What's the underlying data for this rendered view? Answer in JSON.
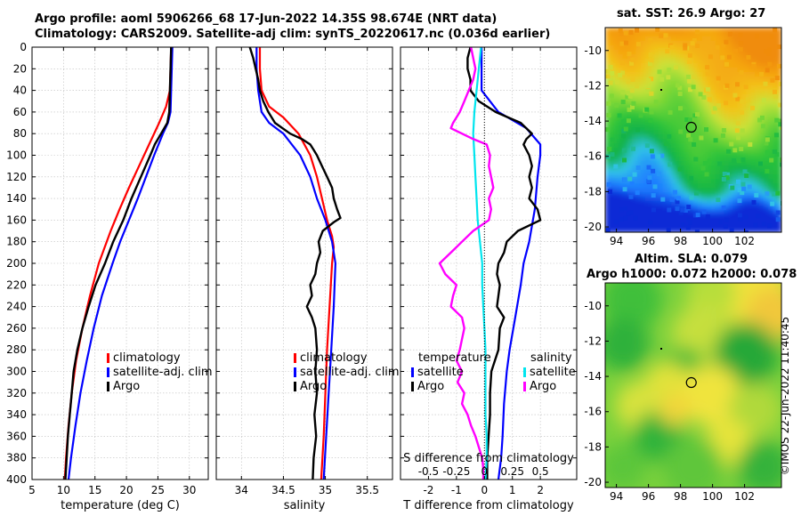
{
  "titles": {
    "line1": "Argo profile: aoml 5906266_68 17-Jun-2022 14.35S 98.674E (NRT data)",
    "line2": "Climatology: CARS2009. Satellite-adj clim: synTS_20220617.nc (0.036d earlier)",
    "sst_title": "sat. SST: 26.9 Argo: 27",
    "sla_title1": "Altim. SLA: 0.079",
    "sla_title2": "Argo h1000: 0.072 h2000: 0.078",
    "imos_stamp": "©IMOS 22-Jun-2022 11:40:45"
  },
  "colors": {
    "climatology": "#ff0000",
    "satellite": "#0000ff",
    "argo": "#000000",
    "sal_satellite": "#00e5ee",
    "sal_argo": "#ff00ff"
  },
  "chart_data": [
    {
      "type": "line",
      "panel": "temperature",
      "xlabel": "temperature (deg C)",
      "ylabel": "",
      "xlim": [
        5,
        33
      ],
      "ylim": [
        400,
        0
      ],
      "xticks": [
        5,
        10,
        15,
        20,
        25,
        30
      ],
      "yticks": [
        0,
        20,
        40,
        60,
        80,
        100,
        120,
        140,
        160,
        180,
        200,
        220,
        240,
        260,
        280,
        300,
        320,
        340,
        360,
        380,
        400
      ],
      "grid": true,
      "legend": [
        "climatology",
        "satellite-adj. clim",
        "Argo"
      ],
      "series": [
        {
          "name": "climatology",
          "color": "#ff0000",
          "depth": [
            0,
            20,
            40,
            55,
            70,
            90,
            110,
            130,
            150,
            170,
            200,
            230,
            260,
            290,
            320,
            350,
            380,
            400
          ],
          "values": [
            27.1,
            27.0,
            26.9,
            26.3,
            25.2,
            23.6,
            22.0,
            20.4,
            18.9,
            17.5,
            15.6,
            14.2,
            13.0,
            12.0,
            11.3,
            10.8,
            10.4,
            10.2
          ]
        },
        {
          "name": "satellite-adj. clim",
          "color": "#0000ff",
          "depth": [
            0,
            20,
            40,
            60,
            70,
            80,
            100,
            120,
            140,
            160,
            180,
            200,
            230,
            260,
            290,
            320,
            350,
            380,
            400
          ],
          "values": [
            27.3,
            27.2,
            27.1,
            27.0,
            26.6,
            25.8,
            24.4,
            23.1,
            21.8,
            20.4,
            19.0,
            17.8,
            16.1,
            14.8,
            13.7,
            12.7,
            11.9,
            11.2,
            10.8
          ]
        },
        {
          "name": "Argo",
          "color": "#000000",
          "depth": [
            0,
            20,
            40,
            60,
            70,
            80,
            90,
            100,
            120,
            140,
            160,
            180,
            200,
            220,
            240,
            260,
            280,
            300,
            320,
            340,
            360,
            380,
            400
          ],
          "values": [
            27.1,
            27.0,
            26.9,
            26.8,
            26.5,
            25.5,
            24.5,
            23.8,
            22.3,
            20.8,
            19.5,
            17.9,
            16.6,
            15.1,
            14.0,
            13.0,
            12.2,
            11.6,
            11.3,
            11.0,
            10.7,
            10.5,
            10.3
          ]
        }
      ]
    },
    {
      "type": "line",
      "panel": "salinity",
      "xlabel": "salinity",
      "ylabel": "",
      "xlim": [
        33.7,
        35.8
      ],
      "ylim": [
        400,
        0
      ],
      "xticks": [
        34,
        34.5,
        35,
        35.5
      ],
      "xticklabels": [
        "34",
        "34.5",
        "35",
        "35.5"
      ],
      "grid": true,
      "legend": [
        "climatology",
        "satellite-adj. clim",
        "Argo"
      ],
      "series": [
        {
          "name": "climatology",
          "color": "#ff0000",
          "depth": [
            0,
            20,
            40,
            55,
            65,
            80,
            100,
            120,
            140,
            160,
            175,
            185,
            200,
            240,
            280,
            320,
            360,
            400
          ],
          "values": [
            34.22,
            34.22,
            34.24,
            34.33,
            34.5,
            34.68,
            34.82,
            34.9,
            34.96,
            35.02,
            35.08,
            35.1,
            35.08,
            35.05,
            35.02,
            35.0,
            34.98,
            34.95
          ]
        },
        {
          "name": "satellite-adj. clim",
          "color": "#0000ff",
          "depth": [
            0,
            20,
            40,
            60,
            70,
            80,
            100,
            120,
            140,
            160,
            180,
            200,
            240,
            280,
            320,
            360,
            400
          ],
          "values": [
            34.18,
            34.18,
            34.2,
            34.24,
            34.33,
            34.5,
            34.7,
            34.82,
            34.9,
            35.0,
            35.08,
            35.12,
            35.1,
            35.07,
            35.04,
            35.01,
            34.98
          ]
        },
        {
          "name": "Argo",
          "color": "#000000",
          "depth": [
            0,
            10,
            20,
            30,
            40,
            50,
            60,
            70,
            80,
            85,
            90,
            95,
            100,
            110,
            120,
            130,
            140,
            150,
            158,
            162,
            170,
            180,
            190,
            200,
            210,
            220,
            230,
            240,
            250,
            260,
            280,
            300,
            320,
            340,
            360,
            380,
            400
          ],
          "values": [
            34.1,
            34.14,
            34.17,
            34.2,
            34.22,
            34.26,
            34.32,
            34.4,
            34.58,
            34.72,
            34.82,
            34.86,
            34.9,
            34.96,
            35.02,
            35.08,
            35.1,
            35.14,
            35.18,
            35.1,
            34.97,
            34.92,
            34.94,
            34.9,
            34.88,
            34.82,
            34.84,
            34.78,
            34.84,
            34.88,
            34.9,
            34.88,
            34.9,
            34.87,
            34.89,
            34.86,
            34.85
          ]
        }
      ]
    },
    {
      "type": "line",
      "panel": "difference",
      "xlabel": "T difference from climatology",
      "top_axis_label": "S difference from climatology",
      "xlim": [
        -3,
        3.3
      ],
      "ylim": [
        400,
        0
      ],
      "xticks": [
        -2,
        -1,
        0,
        1,
        2
      ],
      "xticklabels": [
        "-2",
        "-1",
        "0",
        "1",
        "2"
      ],
      "s_ticklabels": [
        "-0.5",
        "-0.25",
        "0",
        "0.25",
        "0.5"
      ],
      "grid": true,
      "legend_temperature_title": "temperature",
      "legend_salinity_title": "salinity",
      "legend": [
        "satellite",
        "Argo",
        "satellite",
        "Argo"
      ],
      "series": [
        {
          "name": "T satellite",
          "color": "#0000ff",
          "depth": [
            0,
            40,
            60,
            75,
            90,
            100,
            120,
            150,
            180,
            200,
            220,
            250,
            280,
            300,
            330,
            360,
            380,
            400
          ],
          "values": [
            -0.1,
            -0.1,
            0.5,
            1.5,
            2.0,
            2.0,
            1.9,
            1.8,
            1.6,
            1.4,
            1.3,
            1.1,
            0.9,
            0.8,
            0.7,
            0.65,
            0.6,
            0.5
          ]
        },
        {
          "name": "T Argo",
          "color": "#000000",
          "depth": [
            0,
            10,
            20,
            30,
            40,
            50,
            60,
            70,
            80,
            85,
            90,
            100,
            110,
            120,
            130,
            140,
            150,
            160,
            170,
            180,
            190,
            200,
            210,
            220,
            240,
            250,
            260,
            280,
            300,
            320,
            340,
            360,
            380,
            400
          ],
          "values": [
            -0.5,
            -0.6,
            -0.6,
            -0.5,
            -0.5,
            -0.2,
            0.4,
            1.3,
            1.7,
            1.5,
            1.4,
            1.6,
            1.7,
            1.6,
            1.7,
            1.6,
            1.9,
            2.0,
            1.2,
            0.8,
            0.7,
            0.5,
            0.45,
            0.55,
            0.45,
            0.7,
            0.55,
            0.5,
            0.25,
            0.2,
            0.2,
            0.15,
            0.1,
            0.1
          ]
        },
        {
          "name": "S satellite",
          "color": "#00e5ee",
          "depth": [
            0,
            20,
            40,
            60,
            80,
            100,
            120,
            140,
            160,
            180,
            200,
            220,
            240,
            260,
            280,
            300,
            320,
            340,
            360,
            380,
            400
          ],
          "values": [
            -0.03,
            -0.05,
            -0.07,
            -0.09,
            -0.1,
            -0.09,
            -0.08,
            -0.07,
            -0.06,
            -0.04,
            -0.02,
            -0.02,
            -0.01,
            0.0,
            0.01,
            0.01,
            0.01,
            0.01,
            0.02,
            0.02,
            0.01
          ]
        },
        {
          "name": "S Argo",
          "color": "#ff00ff",
          "depth": [
            0,
            10,
            20,
            30,
            40,
            50,
            60,
            70,
            75,
            80,
            85,
            90,
            100,
            110,
            120,
            130,
            140,
            150,
            160,
            170,
            180,
            190,
            200,
            210,
            220,
            230,
            240,
            250,
            260,
            270,
            280,
            290,
            300,
            310,
            320,
            330,
            340,
            350,
            360,
            370,
            380,
            390,
            400
          ],
          "values": [
            -0.12,
            -0.1,
            -0.08,
            -0.1,
            -0.14,
            -0.18,
            -0.22,
            -0.28,
            -0.3,
            -0.2,
            -0.1,
            0.02,
            0.05,
            0.04,
            0.06,
            0.08,
            0.04,
            0.06,
            0.04,
            -0.1,
            -0.2,
            -0.3,
            -0.4,
            -0.35,
            -0.25,
            -0.28,
            -0.3,
            -0.2,
            -0.18,
            -0.2,
            -0.22,
            -0.25,
            -0.2,
            -0.24,
            -0.18,
            -0.2,
            -0.15,
            -0.12,
            -0.08,
            -0.05,
            -0.02,
            -0.01,
            -0.01
          ]
        }
      ]
    },
    {
      "type": "heatmap",
      "panel": "sat_sst_map",
      "title": "sat. SST: 26.9 Argo: 27",
      "xlim": [
        93.3,
        104.3
      ],
      "ylim": [
        -20.3,
        -8.7
      ],
      "xticks": [
        94,
        96,
        98,
        100,
        102
      ],
      "yticks": [
        -10,
        -12,
        -14,
        -16,
        -18,
        -20
      ],
      "marker": {
        "lon": 98.674,
        "lat": -14.35
      }
    },
    {
      "type": "heatmap",
      "panel": "altim_sla_map",
      "title": "Altim. SLA: 0.079",
      "xlim": [
        93.3,
        104.3
      ],
      "ylim": [
        -20.3,
        -8.7
      ],
      "xticks": [
        94,
        96,
        98,
        100,
        102
      ],
      "yticks": [
        -10,
        -12,
        -14,
        -16,
        -18,
        -20
      ],
      "marker": {
        "lon": 98.674,
        "lat": -14.35
      }
    }
  ]
}
